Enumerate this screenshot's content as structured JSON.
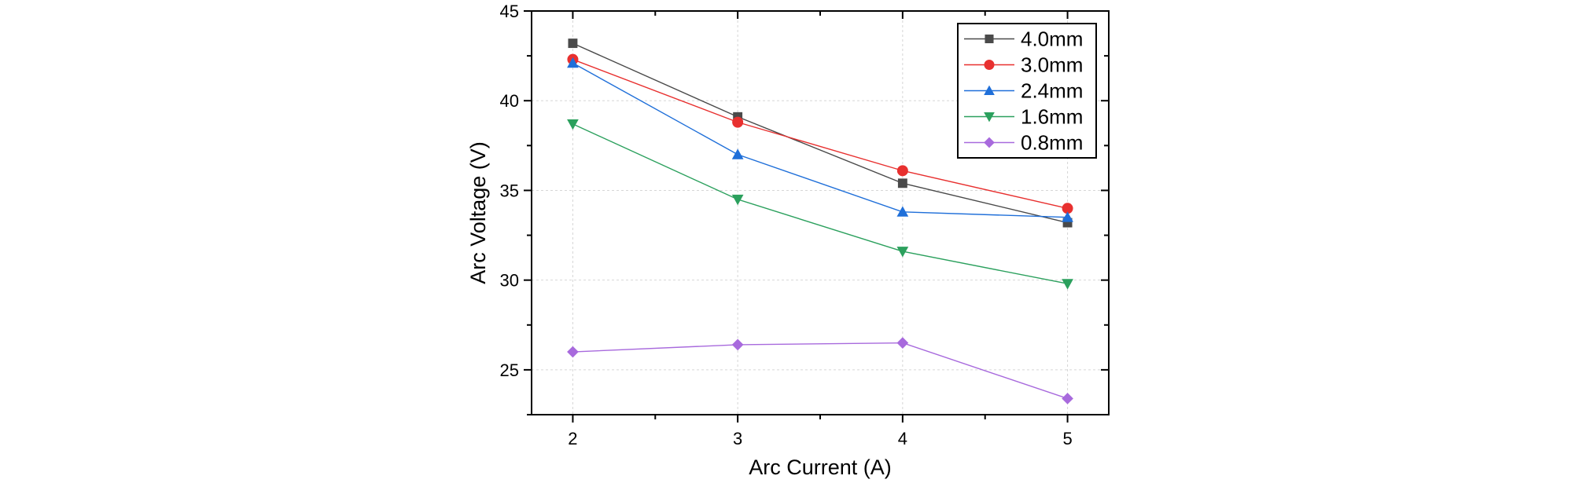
{
  "chart_data": {
    "type": "line",
    "title": "",
    "xlabel": "Arc Current (A)",
    "ylabel": "Arc Voltage (V)",
    "x": [
      2,
      3,
      4,
      5
    ],
    "xlim": [
      1.75,
      5.25
    ],
    "ylim": [
      22.5,
      45
    ],
    "xticks": [
      2,
      3,
      4,
      5
    ],
    "xtick_labels": [
      "2",
      "3",
      "4",
      "5"
    ],
    "yticks": [
      25,
      30,
      35,
      40,
      45
    ],
    "ytick_labels": [
      "25",
      "30",
      "35",
      "40",
      "45"
    ],
    "grid": true,
    "legend_position": "top-right",
    "series": [
      {
        "name": "4.0mm",
        "color": "#4a4a4a",
        "marker": "square",
        "values": [
          43.2,
          39.1,
          35.4,
          33.2
        ]
      },
      {
        "name": "3.0mm",
        "color": "#e8302f",
        "marker": "circle",
        "values": [
          42.3,
          38.8,
          36.1,
          34.0
        ]
      },
      {
        "name": "2.4mm",
        "color": "#1f6fd9",
        "marker": "triangle-up",
        "values": [
          42.1,
          37.0,
          33.8,
          33.5
        ]
      },
      {
        "name": "1.6mm",
        "color": "#2ba05d",
        "marker": "triangle-down",
        "values": [
          38.7,
          34.5,
          31.6,
          29.8
        ]
      },
      {
        "name": "0.8mm",
        "color": "#a86add",
        "marker": "diamond",
        "values": [
          26.0,
          26.4,
          26.5,
          23.4
        ]
      }
    ]
  }
}
